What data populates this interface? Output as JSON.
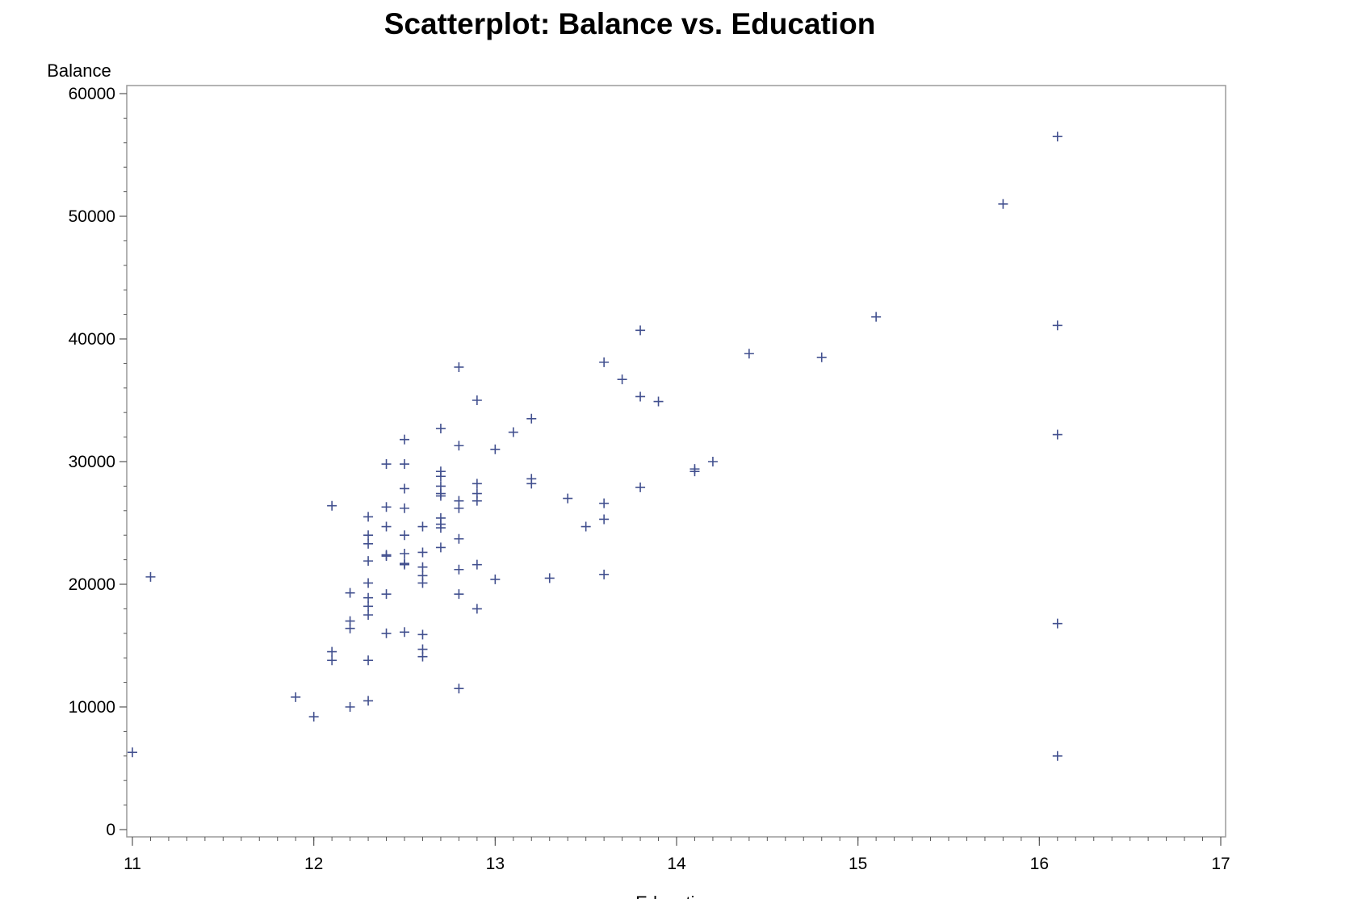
{
  "chart_data": {
    "type": "scatter",
    "title": "Scatterplot: Balance vs. Education",
    "xlabel": "Education",
    "ylabel": "Balance",
    "xlim": [
      11,
      17
    ],
    "ylim": [
      0,
      60000
    ],
    "x_ticks": [
      11,
      12,
      13,
      14,
      15,
      16,
      17
    ],
    "y_ticks": [
      0,
      10000,
      20000,
      30000,
      40000,
      50000,
      60000
    ],
    "x_minor_step": 0.1,
    "y_minor_step": 2000,
    "grid": false,
    "marker": "plus",
    "marker_color": "#42508f",
    "frame_color": "#9a9a9a",
    "points": [
      {
        "x": 11.0,
        "y": 6300
      },
      {
        "x": 11.1,
        "y": 20600
      },
      {
        "x": 11.9,
        "y": 10800
      },
      {
        "x": 12.0,
        "y": 9200
      },
      {
        "x": 12.1,
        "y": 26400
      },
      {
        "x": 12.1,
        "y": 14500
      },
      {
        "x": 12.1,
        "y": 13800
      },
      {
        "x": 12.2,
        "y": 19300
      },
      {
        "x": 12.2,
        "y": 17000
      },
      {
        "x": 12.2,
        "y": 16400
      },
      {
        "x": 12.2,
        "y": 10000
      },
      {
        "x": 12.3,
        "y": 25500
      },
      {
        "x": 12.3,
        "y": 24000
      },
      {
        "x": 12.3,
        "y": 23300
      },
      {
        "x": 12.3,
        "y": 21900
      },
      {
        "x": 12.3,
        "y": 20100
      },
      {
        "x": 12.3,
        "y": 18900
      },
      {
        "x": 12.3,
        "y": 18200
      },
      {
        "x": 12.3,
        "y": 17500
      },
      {
        "x": 12.3,
        "y": 13800
      },
      {
        "x": 12.3,
        "y": 10500
      },
      {
        "x": 12.4,
        "y": 29800
      },
      {
        "x": 12.4,
        "y": 26300
      },
      {
        "x": 12.4,
        "y": 24700
      },
      {
        "x": 12.4,
        "y": 22400
      },
      {
        "x": 12.4,
        "y": 22300
      },
      {
        "x": 12.4,
        "y": 19200
      },
      {
        "x": 12.4,
        "y": 16000
      },
      {
        "x": 12.5,
        "y": 31800
      },
      {
        "x": 12.5,
        "y": 29800
      },
      {
        "x": 12.5,
        "y": 27800
      },
      {
        "x": 12.5,
        "y": 26200
      },
      {
        "x": 12.5,
        "y": 24000
      },
      {
        "x": 12.5,
        "y": 22500
      },
      {
        "x": 12.5,
        "y": 21700
      },
      {
        "x": 12.5,
        "y": 21600
      },
      {
        "x": 12.5,
        "y": 16100
      },
      {
        "x": 12.6,
        "y": 24700
      },
      {
        "x": 12.6,
        "y": 22600
      },
      {
        "x": 12.6,
        "y": 21400
      },
      {
        "x": 12.6,
        "y": 20700
      },
      {
        "x": 12.6,
        "y": 20100
      },
      {
        "x": 12.6,
        "y": 15900
      },
      {
        "x": 12.6,
        "y": 14700
      },
      {
        "x": 12.6,
        "y": 14100
      },
      {
        "x": 12.7,
        "y": 32700
      },
      {
        "x": 12.7,
        "y": 29200
      },
      {
        "x": 12.7,
        "y": 28800
      },
      {
        "x": 12.7,
        "y": 28000
      },
      {
        "x": 12.7,
        "y": 27400
      },
      {
        "x": 12.7,
        "y": 27200
      },
      {
        "x": 12.7,
        "y": 25400
      },
      {
        "x": 12.7,
        "y": 24900
      },
      {
        "x": 12.7,
        "y": 24600
      },
      {
        "x": 12.7,
        "y": 23000
      },
      {
        "x": 12.8,
        "y": 37700
      },
      {
        "x": 12.8,
        "y": 31300
      },
      {
        "x": 12.8,
        "y": 26800
      },
      {
        "x": 12.8,
        "y": 26200
      },
      {
        "x": 12.8,
        "y": 23700
      },
      {
        "x": 12.8,
        "y": 21200
      },
      {
        "x": 12.8,
        "y": 19200
      },
      {
        "x": 12.8,
        "y": 11500
      },
      {
        "x": 12.9,
        "y": 35000
      },
      {
        "x": 12.9,
        "y": 28200
      },
      {
        "x": 12.9,
        "y": 27400
      },
      {
        "x": 12.9,
        "y": 26800
      },
      {
        "x": 12.9,
        "y": 21600
      },
      {
        "x": 12.9,
        "y": 18000
      },
      {
        "x": 13.0,
        "y": 31000
      },
      {
        "x": 13.0,
        "y": 20400
      },
      {
        "x": 13.1,
        "y": 32400
      },
      {
        "x": 13.2,
        "y": 33500
      },
      {
        "x": 13.2,
        "y": 28600
      },
      {
        "x": 13.2,
        "y": 28200
      },
      {
        "x": 13.3,
        "y": 20500
      },
      {
        "x": 13.4,
        "y": 27000
      },
      {
        "x": 13.5,
        "y": 24700
      },
      {
        "x": 13.6,
        "y": 38100
      },
      {
        "x": 13.6,
        "y": 26600
      },
      {
        "x": 13.6,
        "y": 25300
      },
      {
        "x": 13.6,
        "y": 20800
      },
      {
        "x": 13.7,
        "y": 36700
      },
      {
        "x": 13.8,
        "y": 40700
      },
      {
        "x": 13.8,
        "y": 35300
      },
      {
        "x": 13.8,
        "y": 27900
      },
      {
        "x": 13.9,
        "y": 34900
      },
      {
        "x": 14.1,
        "y": 29400
      },
      {
        "x": 14.1,
        "y": 29200
      },
      {
        "x": 14.2,
        "y": 30000
      },
      {
        "x": 14.4,
        "y": 38800
      },
      {
        "x": 14.8,
        "y": 38500
      },
      {
        "x": 15.1,
        "y": 41800
      },
      {
        "x": 15.8,
        "y": 51000
      },
      {
        "x": 16.1,
        "y": 56500
      },
      {
        "x": 16.1,
        "y": 41100
      },
      {
        "x": 16.1,
        "y": 32200
      },
      {
        "x": 16.1,
        "y": 16800
      },
      {
        "x": 16.1,
        "y": 6000
      }
    ]
  }
}
